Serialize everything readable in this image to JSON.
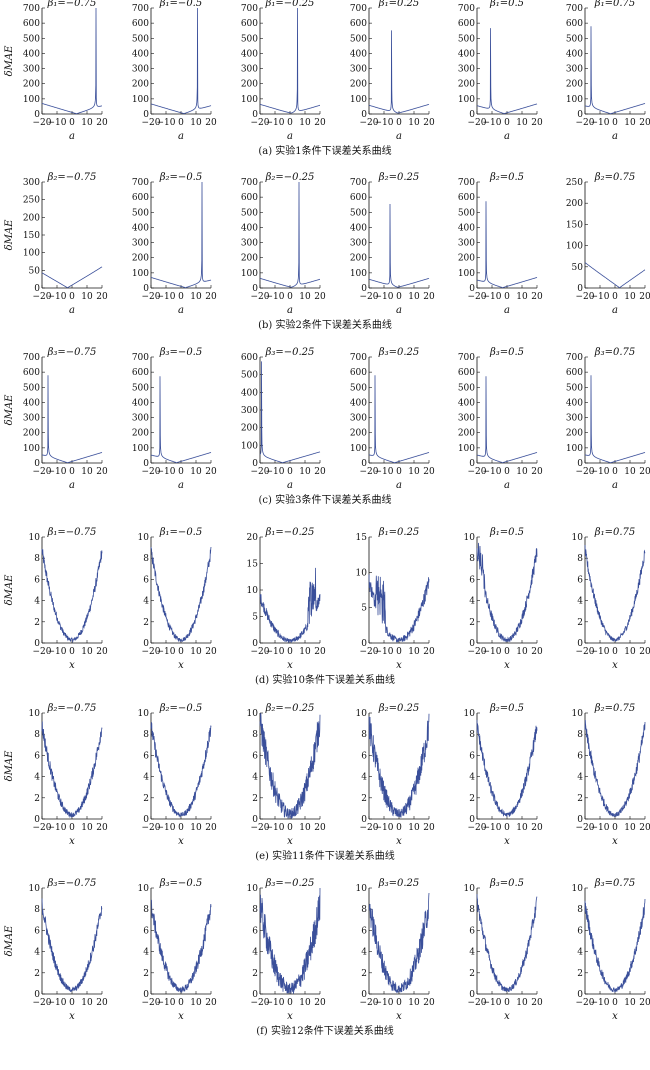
{
  "figure": {
    "rows": [
      {
        "caption": "(a) 实验1条件下误差关系曲线",
        "xlabel": "a",
        "ylabel": "δMAE",
        "xticks": [
          -20,
          -10,
          0,
          10,
          20
        ],
        "xtick_labels": [
          "−20",
          "−10",
          "0",
          "10",
          "20"
        ],
        "panels": [
          {
            "title": "β₁=−0.75",
            "yticks": [
              0,
              100,
              200,
              300,
              400,
              500,
              600,
              700
            ],
            "ylim": [
              0,
              700
            ],
            "spike": 16,
            "w": 0.35,
            "amp": 60,
            "mid": 3,
            "left": true
          },
          {
            "title": "β₁=−0.5",
            "yticks": [
              0,
              100,
              200,
              300,
              400,
              500,
              600,
              700
            ],
            "ylim": [
              0,
              700
            ],
            "spike": 11,
            "w": 0.35,
            "amp": 60,
            "mid": 2,
            "left": true
          },
          {
            "title": "β₁=−0.25",
            "yticks": [
              0,
              100,
              200,
              300,
              400,
              500,
              600,
              700
            ],
            "ylim": [
              0,
              700
            ],
            "spike": 5,
            "w": 0.35,
            "amp": 60,
            "mid": 1,
            "left": true
          },
          {
            "title": "β₁=0.25",
            "yticks": [
              0,
              100,
              200,
              300,
              400,
              500,
              600,
              700
            ],
            "ylim": [
              0,
              700
            ],
            "spike": -5,
            "w": 0.35,
            "amp": 60,
            "mid": -1,
            "left": false
          },
          {
            "title": "β₁=0.5",
            "yticks": [
              0,
              100,
              200,
              300,
              400,
              500,
              600,
              700
            ],
            "ylim": [
              0,
              700
            ],
            "spike": -11,
            "w": 0.35,
            "amp": 60,
            "mid": -2,
            "left": false
          },
          {
            "title": "β₁=0.75",
            "yticks": [
              0,
              100,
              200,
              300,
              400,
              500,
              600,
              700
            ],
            "ylim": [
              0,
              700
            ],
            "spike": -16,
            "w": 0.35,
            "amp": 60,
            "mid": -3,
            "left": false
          }
        ]
      },
      {
        "caption": "(b) 实验2条件下误差关系曲线",
        "xlabel": "a",
        "ylabel": "δMAE",
        "xticks": [
          -20,
          -10,
          0,
          10,
          20
        ],
        "xtick_labels": [
          "−20",
          "−10",
          "0",
          "10",
          "20"
        ],
        "panels": [
          {
            "title": "β₂=−0.75",
            "yticks": [
              0,
              50,
              100,
              150,
              200,
              250,
              300
            ],
            "ylim": [
              0,
              300
            ],
            "spike": 30,
            "w": 0.35,
            "amp": 50,
            "mid": -3,
            "left": true
          },
          {
            "title": "β₂=−0.5",
            "yticks": [
              0,
              100,
              200,
              300,
              400,
              500,
              600,
              700
            ],
            "ylim": [
              0,
              700
            ],
            "spike": 14,
            "w": 0.35,
            "amp": 60,
            "mid": 3,
            "left": true
          },
          {
            "title": "β₂=−0.25",
            "yticks": [
              0,
              100,
              200,
              300,
              400,
              500,
              600,
              700
            ],
            "ylim": [
              0,
              700
            ],
            "spike": 6,
            "w": 0.35,
            "amp": 60,
            "mid": 1,
            "left": true
          },
          {
            "title": "β₂=0.25",
            "yticks": [
              0,
              100,
              200,
              300,
              400,
              500,
              600,
              700
            ],
            "ylim": [
              0,
              700
            ],
            "spike": -6,
            "w": 0.35,
            "amp": 60,
            "mid": -1,
            "left": false
          },
          {
            "title": "β₂=0.5",
            "yticks": [
              0,
              100,
              200,
              300,
              400,
              500,
              600,
              700
            ],
            "ylim": [
              0,
              700
            ],
            "spike": -14,
            "w": 0.35,
            "amp": 60,
            "mid": -3,
            "left": false
          },
          {
            "title": "β₂=0.75",
            "yticks": [
              0,
              50,
              100,
              150,
              200,
              250
            ],
            "ylim": [
              0,
              250
            ],
            "spike": -30,
            "w": 0.35,
            "amp": 50,
            "mid": 3,
            "left": false
          }
        ]
      },
      {
        "caption": "(c) 实验3条件下误差关系曲线",
        "xlabel": "a",
        "ylabel": "δMAE",
        "xticks": [
          -20,
          -10,
          0,
          10,
          20
        ],
        "xtick_labels": [
          "−20",
          "−10",
          "0",
          "10",
          "20"
        ],
        "panels": [
          {
            "title": "β₃=−0.75",
            "yticks": [
              0,
              100,
              200,
              300,
              400,
              500,
              600,
              700
            ],
            "ylim": [
              0,
              700
            ],
            "spike": -16,
            "w": 0.35,
            "amp": 60,
            "mid": -3,
            "left": false
          },
          {
            "title": "β₃=−0.5",
            "yticks": [
              0,
              100,
              200,
              300,
              400,
              500,
              600,
              700
            ],
            "ylim": [
              0,
              700
            ],
            "spike": -14,
            "w": 0.35,
            "amp": 60,
            "mid": -3,
            "left": false
          },
          {
            "title": "β₃=−0.25",
            "yticks": [
              0,
              100,
              200,
              300,
              400,
              500,
              600
            ],
            "ylim": [
              0,
              600
            ],
            "spike": -19,
            "w": 0.35,
            "amp": 50,
            "mid": -5,
            "left": false
          },
          {
            "title": "β₃=0.25",
            "yticks": [
              0,
              100,
              200,
              300,
              400,
              500,
              600,
              700
            ],
            "ylim": [
              0,
              700
            ],
            "spike": -16,
            "w": 0.35,
            "amp": 60,
            "mid": -3,
            "left": false
          },
          {
            "title": "β₃=0.5",
            "yticks": [
              0,
              100,
              200,
              300,
              400,
              500,
              600,
              700
            ],
            "ylim": [
              0,
              700
            ],
            "spike": -14,
            "w": 0.35,
            "amp": 60,
            "mid": -3,
            "left": false
          },
          {
            "title": "β₃=0.75",
            "yticks": [
              0,
              100,
              200,
              300,
              400,
              500,
              600,
              700
            ],
            "ylim": [
              0,
              700
            ],
            "spike": -16,
            "w": 0.35,
            "amp": 60,
            "mid": -3,
            "left": false
          }
        ]
      },
      {
        "caption": "(d) 实验10条件下误差关系曲线",
        "xlabel": "x",
        "ylabel": "δMAE",
        "xticks": [
          -20,
          -10,
          0,
          10,
          20
        ],
        "xtick_labels": [
          "−20",
          "−10",
          "0",
          "10",
          "20"
        ],
        "panels": [
          {
            "title": "β₁=−0.75",
            "yticks": [
              0,
              2,
              4,
              6,
              8,
              10
            ],
            "ylim": [
              0,
              10
            ],
            "curve": "parabola",
            "a": 0.021,
            "c": 0.3,
            "noise": 0.4
          },
          {
            "title": "β₁=−0.5",
            "yticks": [
              0,
              2,
              4,
              6,
              8,
              10
            ],
            "ylim": [
              0,
              10
            ],
            "curve": "parabola",
            "a": 0.021,
            "c": 0.3,
            "noise": 0.4
          },
          {
            "title": "β₁=−0.25",
            "yticks": [
              0,
              5,
              10,
              15,
              20
            ],
            "ylim": [
              0,
              20
            ],
            "curve": "parabola",
            "a": 0.021,
            "c": 0.4,
            "noise": 0.8,
            "burst": [
              12,
              17,
              8
            ]
          },
          {
            "title": "β₁=0.25",
            "yticks": [
              0,
              5,
              10,
              15
            ],
            "ylim": [
              0,
              15
            ],
            "curve": "parabola",
            "a": 0.021,
            "c": 0.4,
            "noise": 0.8,
            "burst": [
              -16,
              -9,
              6
            ]
          },
          {
            "title": "β₁=0.5",
            "yticks": [
              0,
              2,
              4,
              6,
              8,
              10
            ],
            "ylim": [
              0,
              10
            ],
            "curve": "parabola",
            "a": 0.021,
            "c": 0.3,
            "noise": 0.5,
            "burst": [
              -19,
              -15,
              2
            ]
          },
          {
            "title": "β₁=0.75",
            "yticks": [
              0,
              2,
              4,
              6,
              8,
              10
            ],
            "ylim": [
              0,
              10
            ],
            "curve": "parabola",
            "a": 0.021,
            "c": 0.3,
            "noise": 0.4
          }
        ]
      },
      {
        "caption": "(e) 实验11条件下误差关系曲线",
        "xlabel": "x",
        "ylabel": "δMAE",
        "xticks": [
          -20,
          -10,
          0,
          10,
          20
        ],
        "xtick_labels": [
          "−20",
          "−10",
          "0",
          "10",
          "20"
        ],
        "panels": [
          {
            "title": "β₂=−0.75",
            "yticks": [
              0,
              2,
              4,
              6,
              8,
              10
            ],
            "ylim": [
              0,
              10
            ],
            "curve": "parabola",
            "a": 0.021,
            "c": 0.4,
            "noise": 0.5
          },
          {
            "title": "β₂=−0.5",
            "yticks": [
              0,
              2,
              4,
              6,
              8,
              10
            ],
            "ylim": [
              0,
              10
            ],
            "curve": "parabola",
            "a": 0.021,
            "c": 0.4,
            "noise": 0.5
          },
          {
            "title": "β₂=−0.25",
            "yticks": [
              0,
              2,
              4,
              6,
              8,
              10
            ],
            "ylim": [
              0,
              10
            ],
            "curve": "parabola",
            "a": 0.022,
            "c": 0.5,
            "noise": 1.1
          },
          {
            "title": "β₂=0.25",
            "yticks": [
              0,
              2,
              4,
              6,
              8,
              10
            ],
            "ylim": [
              0,
              10
            ],
            "curve": "parabola",
            "a": 0.021,
            "c": 0.5,
            "noise": 1.0
          },
          {
            "title": "β₂=0.5",
            "yticks": [
              0,
              2,
              4,
              6,
              8,
              10
            ],
            "ylim": [
              0,
              10
            ],
            "curve": "parabola",
            "a": 0.021,
            "c": 0.4,
            "noise": 0.5
          },
          {
            "title": "β₂=0.75",
            "yticks": [
              0,
              2,
              4,
              6,
              8,
              10
            ],
            "ylim": [
              0,
              10
            ],
            "curve": "parabola",
            "a": 0.021,
            "c": 0.4,
            "noise": 0.5
          }
        ]
      },
      {
        "caption": "(f) 实验12条件下误差关系曲线",
        "xlabel": "x",
        "ylabel": "δMAE",
        "xticks": [
          -20,
          -10,
          0,
          10,
          20
        ],
        "xtick_labels": [
          "−20",
          "−10",
          "0",
          "10",
          "20"
        ],
        "panels": [
          {
            "title": "β₃=−0.75",
            "yticks": [
              0,
              2,
              4,
              6,
              8,
              10
            ],
            "ylim": [
              0,
              10
            ],
            "curve": "parabola",
            "a": 0.02,
            "c": 0.4,
            "noise": 0.5
          },
          {
            "title": "β₃=−0.5",
            "yticks": [
              0,
              2,
              4,
              6,
              8,
              10
            ],
            "ylim": [
              0,
              10
            ],
            "curve": "parabola",
            "a": 0.02,
            "c": 0.4,
            "noise": 0.6
          },
          {
            "title": "β₃=−0.25",
            "yticks": [
              0,
              2,
              4,
              6,
              8,
              10
            ],
            "ylim": [
              0,
              10
            ],
            "curve": "parabola",
            "a": 0.02,
            "c": 0.5,
            "noise": 1.2
          },
          {
            "title": "β₃=0.25",
            "yticks": [
              0,
              2,
              4,
              6,
              8,
              10
            ],
            "ylim": [
              0,
              10
            ],
            "curve": "parabola",
            "a": 0.02,
            "c": 0.5,
            "noise": 1.0
          },
          {
            "title": "β₃=0.5",
            "yticks": [
              0,
              2,
              4,
              6,
              8,
              10
            ],
            "ylim": [
              0,
              10
            ],
            "curve": "parabola",
            "a": 0.021,
            "c": 0.4,
            "noise": 0.5
          },
          {
            "title": "β₃=0.75",
            "yticks": [
              0,
              2,
              4,
              6,
              8,
              10
            ],
            "ylim": [
              0,
              10
            ],
            "curve": "parabola",
            "a": 0.02,
            "c": 0.4,
            "noise": 0.5
          }
        ]
      }
    ]
  },
  "chart_data": {
    "type": "line",
    "layout": "6 rows × 6 small-multiple line plots",
    "line_color": "#3a4f9a",
    "xlim": [
      -20,
      20
    ]
  }
}
